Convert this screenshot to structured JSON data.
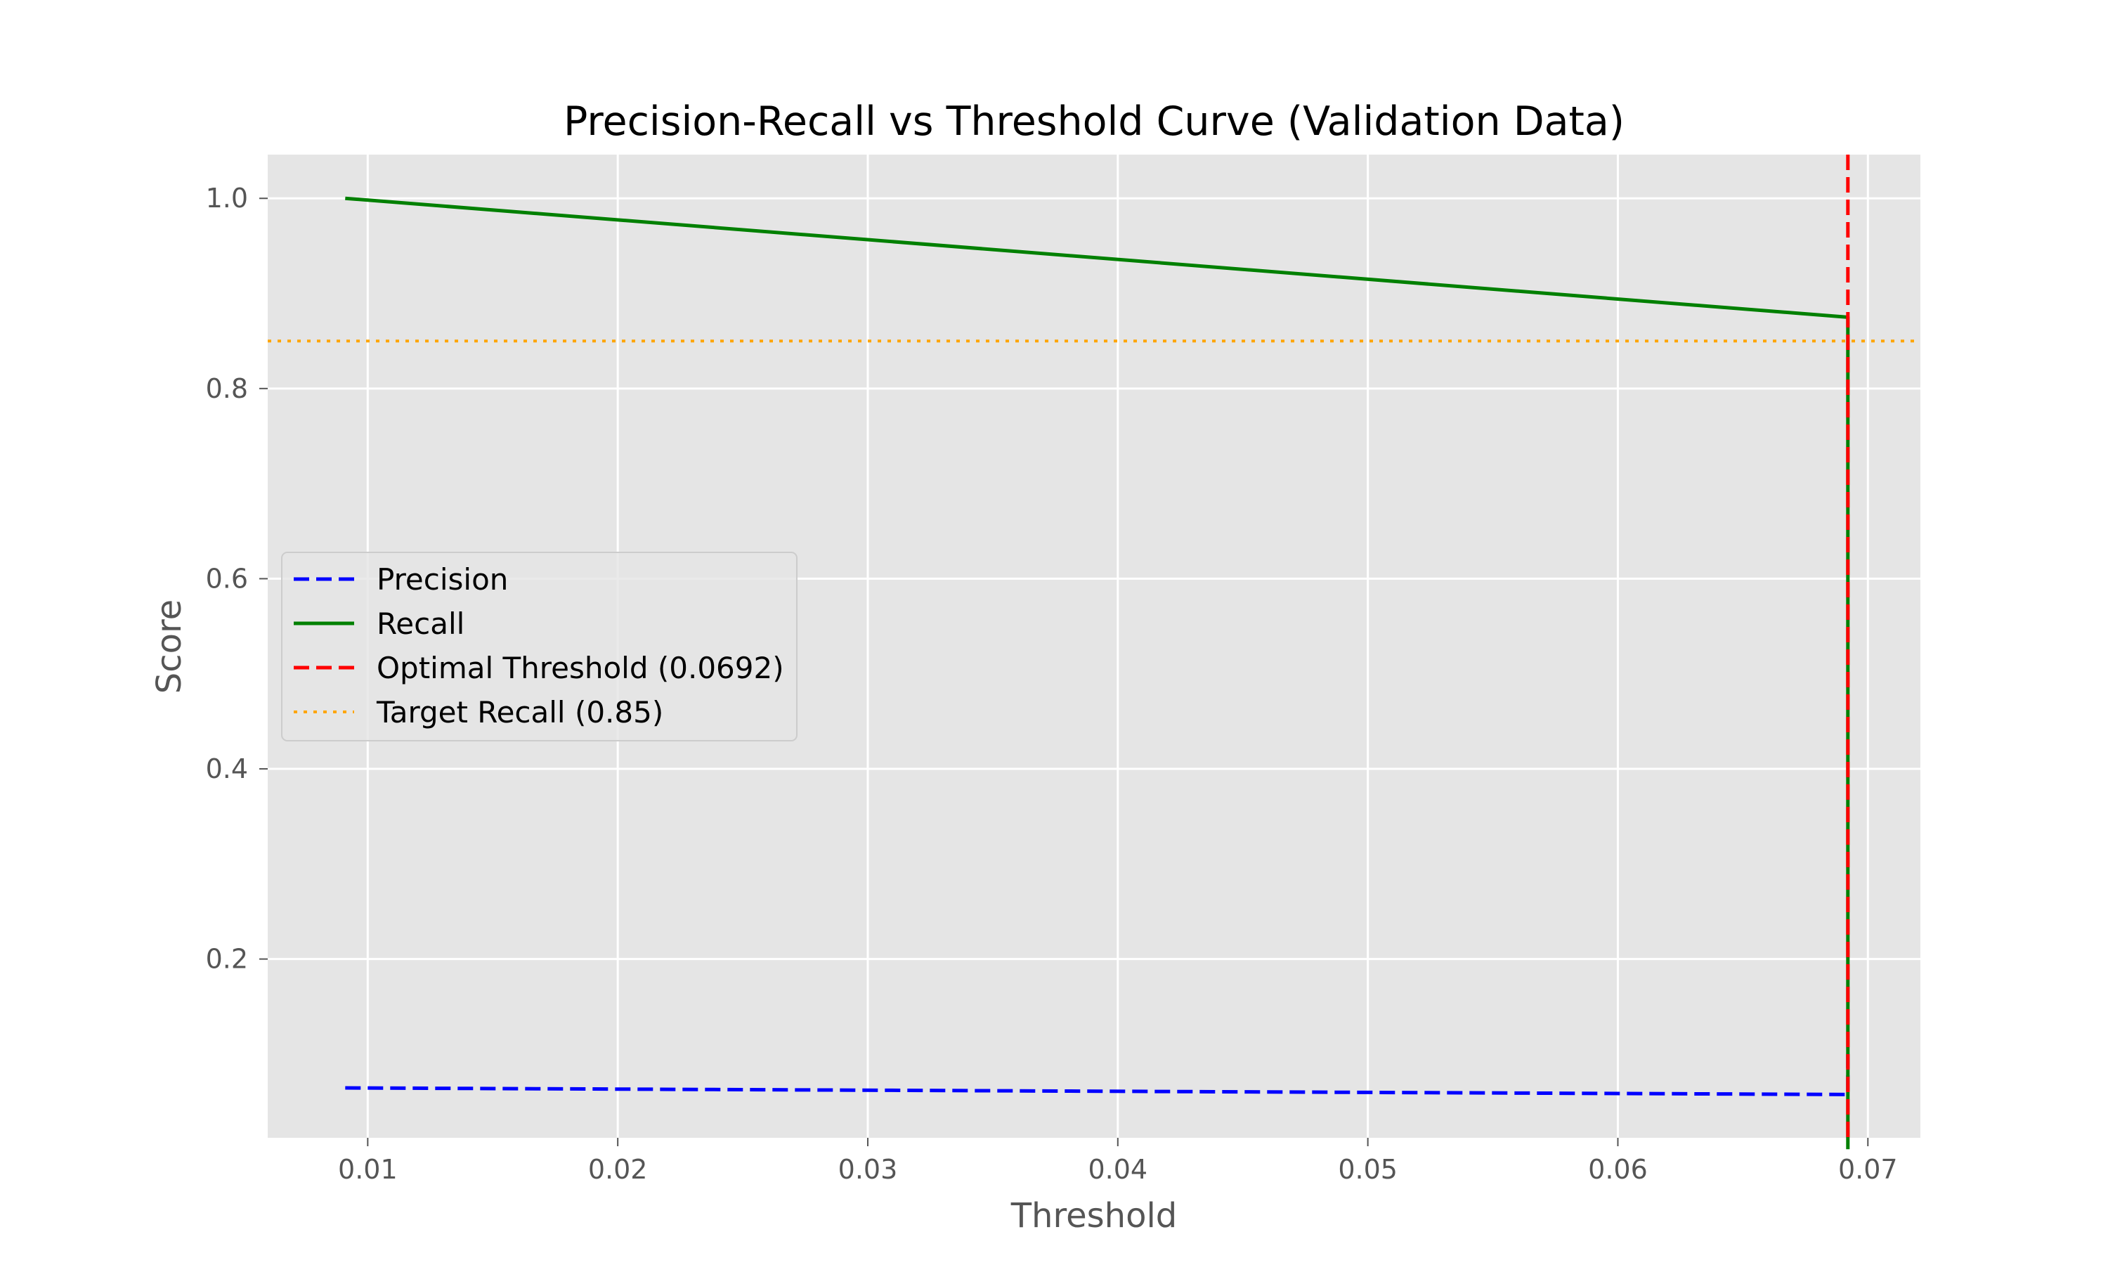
{
  "chart_data": {
    "type": "line",
    "title": "Precision-Recall vs Threshold Curve (Validation Data)",
    "xlabel": "Threshold",
    "ylabel": "Score",
    "xlim": [
      0.006,
      0.0721
    ],
    "ylim": [
      0.012,
      1.046
    ],
    "x_ticks": [
      0.01,
      0.02,
      0.03,
      0.04,
      0.05,
      0.06,
      0.07
    ],
    "x_tick_labels": [
      "0.01",
      "0.02",
      "0.03",
      "0.04",
      "0.05",
      "0.06",
      "0.07"
    ],
    "y_ticks": [
      0.2,
      0.4,
      0.6,
      0.8,
      1.0
    ],
    "y_tick_labels": [
      "0.2",
      "0.4",
      "0.6",
      "0.8",
      "1.0"
    ],
    "grid": true,
    "legend_position": "center-left",
    "series": [
      {
        "name": "Precision",
        "color": "#0000ff",
        "style": "dashed",
        "x": [
          0.0091,
          0.0692,
          0.0692
        ],
        "y": [
          0.0645,
          0.0575,
          0.1
        ]
      },
      {
        "name": "Recall",
        "color": "#008000",
        "style": "solid",
        "x": [
          0.0091,
          0.0692,
          0.0692
        ],
        "y": [
          1.0,
          0.875,
          0.0
        ]
      }
    ],
    "reference_lines": [
      {
        "name": "Optimal Threshold (0.0692)",
        "orientation": "vertical",
        "value": 0.0692,
        "color": "#ff0000",
        "style": "dashed"
      },
      {
        "name": "Target Recall (0.85)",
        "orientation": "horizontal",
        "value": 0.85,
        "color": "#ffa500",
        "style": "dotted"
      }
    ]
  }
}
